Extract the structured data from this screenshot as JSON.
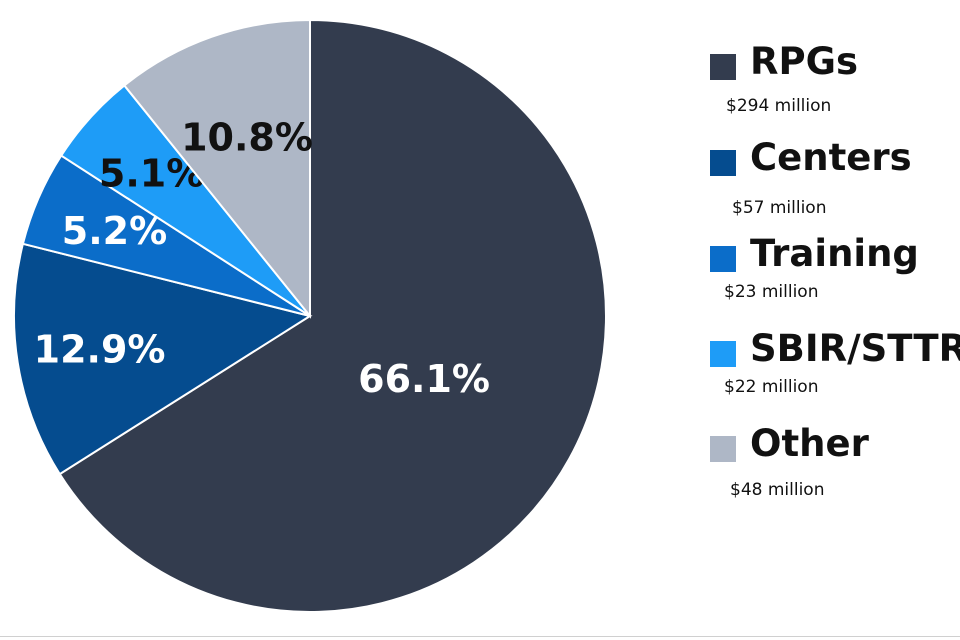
{
  "chart_data": {
    "type": "pie",
    "title": "",
    "legend_position": "right",
    "slices": [
      {
        "name": "RPGs",
        "value": 66.1,
        "label": "66.1%",
        "amount": "$294 million",
        "color": "#333c4e",
        "label_color": "#ffffff"
      },
      {
        "name": "Centers",
        "value": 12.9,
        "label": "12.9%",
        "amount": "$57 million",
        "color": "#054c8f",
        "label_color": "#ffffff"
      },
      {
        "name": "Training",
        "value": 5.2,
        "label": "5.2%",
        "amount": "$23 million",
        "color": "#0b6dc9",
        "label_color": "#ffffff"
      },
      {
        "name": "SBIR/STTR",
        "value": 5.1,
        "label": "5.1%",
        "amount": "$22 million",
        "color": "#1e9cf7",
        "label_color": "#111111"
      },
      {
        "name": "Other",
        "value": 10.8,
        "label": "10.8%",
        "amount": "$48 million",
        "color": "#aeb7c6",
        "label_color": "#111111"
      }
    ]
  }
}
